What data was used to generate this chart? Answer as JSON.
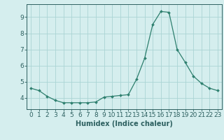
{
  "x": [
    0,
    1,
    2,
    3,
    4,
    5,
    6,
    7,
    8,
    9,
    10,
    11,
    12,
    13,
    14,
    15,
    16,
    17,
    18,
    19,
    20,
    21,
    22,
    23
  ],
  "y": [
    4.6,
    4.45,
    4.1,
    3.85,
    3.7,
    3.7,
    3.7,
    3.7,
    3.75,
    4.05,
    4.1,
    4.15,
    4.2,
    5.15,
    6.45,
    8.55,
    9.35,
    9.3,
    7.0,
    6.2,
    5.35,
    4.9,
    4.6,
    4.45
  ],
  "x_labels": [
    "0",
    "1",
    "2",
    "3",
    "4",
    "5",
    "6",
    "7",
    "8",
    "9",
    "10",
    "11",
    "12",
    "13",
    "14",
    "15",
    "16",
    "17",
    "18",
    "19",
    "20",
    "21",
    "22",
    "23"
  ],
  "xlabel": "Humidex (Indice chaleur)",
  "ylim": [
    3.3,
    9.8
  ],
  "xlim": [
    -0.5,
    23.5
  ],
  "yticks": [
    4,
    5,
    6,
    7,
    8,
    9
  ],
  "line_color": "#2d7f6e",
  "marker_color": "#2d7f6e",
  "bg_color": "#d5eeee",
  "grid_color": "#aad4d4",
  "tick_color": "#2d6060",
  "label_fontsize": 7,
  "tick_fontsize": 6.5
}
